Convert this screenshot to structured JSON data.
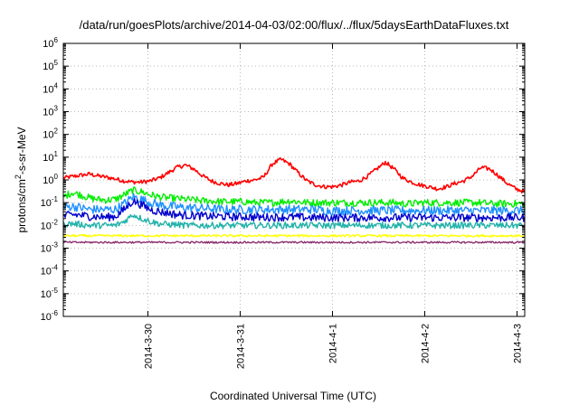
{
  "chart_data": {
    "type": "line",
    "title": "/data/run/goesPlots/archive/2014-04-03/02:00/flux/../flux/5daysEarthDataFluxes.txt",
    "xlabel": "Coordinated Universal Time (UTC)",
    "ylabel_parts": [
      "protons/cm",
      "2",
      "-s-sr-MeV"
    ],
    "yscale": "log",
    "ylim": [
      1e-06,
      1000000.0
    ],
    "xlim": [
      "2014-03-29 02:00",
      "2014-04-03 02:00"
    ],
    "grid": true,
    "y_ticks": [
      {
        "exp": "-6",
        "value": 1e-06
      },
      {
        "exp": "-5",
        "value": 1e-05
      },
      {
        "exp": "-4",
        "value": 0.0001
      },
      {
        "exp": "-3",
        "value": 0.001
      },
      {
        "exp": "-2",
        "value": 0.01
      },
      {
        "exp": "-1",
        "value": 0.1
      },
      {
        "exp": "0",
        "value": 1
      },
      {
        "exp": "1",
        "value": 10
      },
      {
        "exp": "2",
        "value": 100
      },
      {
        "exp": "3",
        "value": 1000
      },
      {
        "exp": "4",
        "value": 10000
      },
      {
        "exp": "5",
        "value": 100000
      },
      {
        "exp": "6",
        "value": 1000000
      }
    ],
    "x_ticks": [
      {
        "label": "2014-3-30",
        "hours": 22
      },
      {
        "label": "2014-3-31",
        "hours": 46
      },
      {
        "label": "2014-4-1",
        "hours": 70
      },
      {
        "label": "2014-4-2",
        "hours": 94
      },
      {
        "label": "2014-4-3",
        "hours": 118
      }
    ],
    "series": [
      {
        "color": "#ff0000",
        "values": [
          1.2,
          1.4,
          1.6,
          1.8,
          1.5,
          1.3,
          1.1,
          0.9,
          0.8,
          0.8,
          0.9,
          1.2,
          2.0,
          3.5,
          4.5,
          3.0,
          1.5,
          0.9,
          0.7,
          0.6,
          0.7,
          0.9,
          1.0,
          1.3,
          5.0,
          8.0,
          5.0,
          2.0,
          0.9,
          0.6,
          0.5,
          0.5,
          0.6,
          0.8,
          0.9,
          1.5,
          3.0,
          6.0,
          3.0,
          1.2,
          0.8,
          0.6,
          0.5,
          0.4,
          0.5,
          0.7,
          0.9,
          1.5,
          3.5,
          3.0,
          1.5,
          0.7,
          0.4,
          0.3
        ]
      },
      {
        "color": "#00ee00",
        "values": [
          0.18,
          0.28,
          0.22,
          0.16,
          0.14,
          0.13,
          0.14,
          0.22,
          0.35,
          0.3,
          0.22,
          0.18,
          0.16,
          0.15,
          0.14,
          0.13,
          0.12,
          0.12,
          0.11,
          0.11,
          0.11,
          0.11,
          0.1,
          0.1,
          0.1,
          0.11,
          0.12,
          0.11,
          0.1,
          0.1,
          0.1,
          0.1,
          0.1,
          0.1,
          0.1,
          0.1,
          0.1,
          0.1,
          0.1,
          0.09,
          0.09,
          0.1,
          0.1,
          0.1,
          0.1,
          0.1,
          0.1,
          0.1,
          0.1,
          0.09,
          0.09,
          0.09,
          0.09,
          0.09
        ]
      },
      {
        "color": "#1e90ff",
        "values": [
          0.06,
          0.07,
          0.06,
          0.05,
          0.05,
          0.05,
          0.05,
          0.09,
          0.18,
          0.14,
          0.1,
          0.08,
          0.07,
          0.065,
          0.06,
          0.06,
          0.055,
          0.055,
          0.05,
          0.05,
          0.05,
          0.05,
          0.05,
          0.05,
          0.05,
          0.05,
          0.05,
          0.05,
          0.05,
          0.05,
          0.045,
          0.045,
          0.045,
          0.045,
          0.045,
          0.045,
          0.045,
          0.045,
          0.045,
          0.045,
          0.045,
          0.045,
          0.045,
          0.045,
          0.045,
          0.045,
          0.045,
          0.045,
          0.045,
          0.045,
          0.045,
          0.045,
          0.045,
          0.045
        ]
      },
      {
        "color": "#0000cc",
        "values": [
          0.025,
          0.03,
          0.028,
          0.025,
          0.024,
          0.023,
          0.025,
          0.05,
          0.12,
          0.08,
          0.05,
          0.04,
          0.035,
          0.03,
          0.028,
          0.027,
          0.026,
          0.025,
          0.025,
          0.024,
          0.024,
          0.024,
          0.023,
          0.023,
          0.023,
          0.023,
          0.023,
          0.023,
          0.022,
          0.022,
          0.022,
          0.022,
          0.022,
          0.022,
          0.022,
          0.022,
          0.022,
          0.022,
          0.022,
          0.022,
          0.022,
          0.022,
          0.022,
          0.022,
          0.022,
          0.022,
          0.022,
          0.022,
          0.022,
          0.022,
          0.022,
          0.022,
          0.022,
          0.022
        ]
      },
      {
        "color": "#20b2aa",
        "values": [
          0.011,
          0.012,
          0.011,
          0.01,
          0.01,
          0.01,
          0.01,
          0.015,
          0.03,
          0.02,
          0.015,
          0.012,
          0.011,
          0.011,
          0.01,
          0.01,
          0.01,
          0.01,
          0.01,
          0.01,
          0.01,
          0.01,
          0.01,
          0.01,
          0.01,
          0.01,
          0.01,
          0.01,
          0.01,
          0.01,
          0.01,
          0.01,
          0.01,
          0.01,
          0.01,
          0.01,
          0.01,
          0.01,
          0.01,
          0.01,
          0.01,
          0.01,
          0.01,
          0.01,
          0.01,
          0.01,
          0.01,
          0.01,
          0.01,
          0.01,
          0.01,
          0.01,
          0.01,
          0.01
        ]
      },
      {
        "color": "#ffff00",
        "values": [
          0.0035,
          0.0035,
          0.0035,
          0.0035,
          0.0035,
          0.0035,
          0.0035,
          0.0035,
          0.0035,
          0.0035,
          0.0035,
          0.0035,
          0.0035,
          0.0035,
          0.0035,
          0.0035,
          0.0035,
          0.0035,
          0.0035,
          0.0035,
          0.0035,
          0.0035,
          0.0035,
          0.0035,
          0.0035,
          0.0035,
          0.0035,
          0.0035,
          0.0035,
          0.0035,
          0.0035,
          0.0035,
          0.0035,
          0.0035,
          0.0035,
          0.0035,
          0.0035,
          0.0035,
          0.0035,
          0.0035,
          0.0035,
          0.0035,
          0.0035,
          0.0035,
          0.0035,
          0.0035,
          0.0035,
          0.0035,
          0.0035,
          0.0035,
          0.0035,
          0.0035,
          0.0035,
          0.0035
        ]
      },
      {
        "color": "#8b2e6e",
        "values": [
          0.0018,
          0.0018,
          0.0018,
          0.0018,
          0.0018,
          0.0018,
          0.0018,
          0.0018,
          0.0018,
          0.0018,
          0.0018,
          0.0018,
          0.0018,
          0.0018,
          0.0018,
          0.0018,
          0.0018,
          0.0018,
          0.0018,
          0.0018,
          0.0018,
          0.0018,
          0.0018,
          0.0018,
          0.0018,
          0.0018,
          0.0018,
          0.0018,
          0.0018,
          0.0018,
          0.0018,
          0.0018,
          0.0018,
          0.0018,
          0.0018,
          0.0018,
          0.0018,
          0.0018,
          0.0018,
          0.0018,
          0.0018,
          0.0018,
          0.0018,
          0.0018,
          0.0018,
          0.0018,
          0.0018,
          0.0018,
          0.0018,
          0.0018,
          0.0018,
          0.0018,
          0.0018,
          0.0018
        ]
      }
    ]
  }
}
